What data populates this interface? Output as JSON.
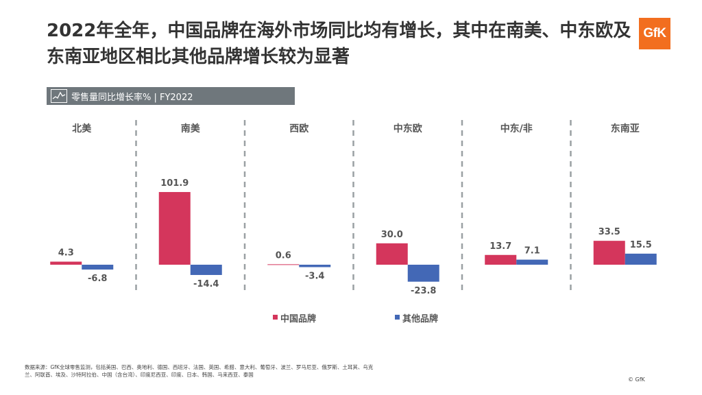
{
  "title": "2022年全年，中国品牌在海外市场同比均有增长，其中在南美、中东欧及东南亚地区相比其他品牌增长较为显著",
  "logo_text": "GfK",
  "metric_label": "零售量同比增长率% | FY2022",
  "chart_data": {
    "type": "bar",
    "categories": [
      "北美",
      "南美",
      "西欧",
      "中东欧",
      "中东/非",
      "东南亚"
    ],
    "series": [
      {
        "name": "中国品牌",
        "color": "#d4365c",
        "values": [
          4.3,
          101.9,
          0.6,
          30.0,
          13.7,
          33.5
        ],
        "labels": [
          "4.3",
          "101.9",
          "0.6",
          "30.0",
          "13.7",
          "33.5"
        ]
      },
      {
        "name": "其他品牌",
        "color": "#4368b6",
        "values": [
          -6.8,
          -14.4,
          -3.4,
          -23.8,
          7.1,
          15.5
        ],
        "labels": [
          "-6.8",
          "-14.4",
          "-3.4",
          "-23.8",
          "7.1",
          "15.5"
        ]
      }
    ],
    "legend_position": "bottom-center",
    "grid": false
  },
  "footnote": "数据来源：GfK全球零售监测，包括美国、巴西、奥地利、德国、西班牙、法国、英国、希腊、意大利、葡萄牙、波兰、罗马尼亚、俄罗斯、土耳其、乌克兰、阿联酋、埃及、沙特阿拉伯、中国（含台湾）、印度尼西亚、印度、日本、韩国、马来西亚、泰国",
  "copyright": "© GfK"
}
